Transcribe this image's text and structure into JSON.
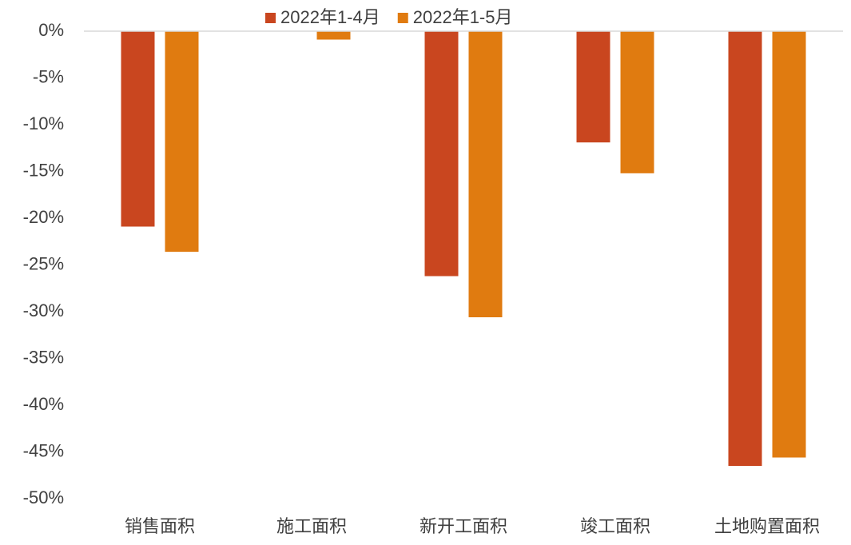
{
  "chart_data": {
    "type": "bar",
    "categories": [
      "销售面积",
      "施工面积",
      "新开工面积",
      "竣工面积",
      "土地购置面积"
    ],
    "series": [
      {
        "name": "2022年1-4月",
        "color": "#c9461f",
        "values": [
          -20.9,
          0,
          -26.2,
          -11.9,
          -46.5
        ]
      },
      {
        "name": "2022年1-5月",
        "color": "#e07b10",
        "values": [
          -23.6,
          -0.9,
          -30.6,
          -15.2,
          -45.6
        ]
      }
    ],
    "ylim": [
      -50,
      0
    ],
    "yticks": [
      {
        "value": 0,
        "label": "0%"
      },
      {
        "value": -5,
        "label": "-5%"
      },
      {
        "value": -10,
        "label": "-10%"
      },
      {
        "value": -15,
        "label": "-15%"
      },
      {
        "value": -20,
        "label": "-20%"
      },
      {
        "value": -25,
        "label": "-25%"
      },
      {
        "value": -30,
        "label": "-30%"
      },
      {
        "value": -35,
        "label": "-35%"
      },
      {
        "value": -40,
        "label": "-40%"
      },
      {
        "value": -45,
        "label": "-45%"
      },
      {
        "value": -50,
        "label": "-50%"
      }
    ],
    "legend": "top"
  }
}
